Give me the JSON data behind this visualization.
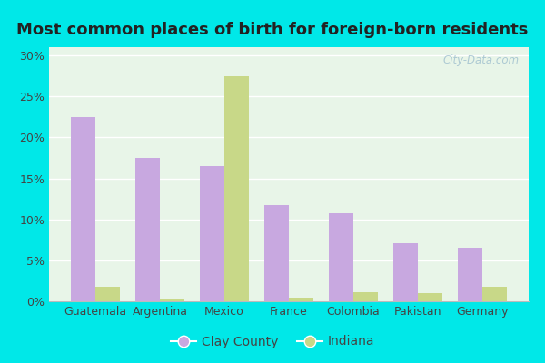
{
  "title": "Most common places of birth for foreign-born residents",
  "categories": [
    "Guatemala",
    "Argentina",
    "Mexico",
    "France",
    "Colombia",
    "Pakistan",
    "Germany"
  ],
  "clay_county": [
    22.5,
    17.5,
    16.5,
    11.7,
    10.7,
    7.1,
    6.5
  ],
  "indiana": [
    1.8,
    0.3,
    27.5,
    0.4,
    1.1,
    1.0,
    1.8
  ],
  "clay_color": "#c8a8e0",
  "indiana_color": "#c8d888",
  "bar_width": 0.38,
  "ylim": [
    0,
    31
  ],
  "yticks": [
    0,
    5,
    10,
    15,
    20,
    25,
    30
  ],
  "legend_clay": "Clay County",
  "legend_indiana": "Indiana",
  "watermark": "City-Data.com",
  "title_fontsize": 13,
  "tick_fontsize": 9,
  "outer_bg": "#00e8e8",
  "plot_bg": "#e8f5e8",
  "grid_color": "#ffffff"
}
